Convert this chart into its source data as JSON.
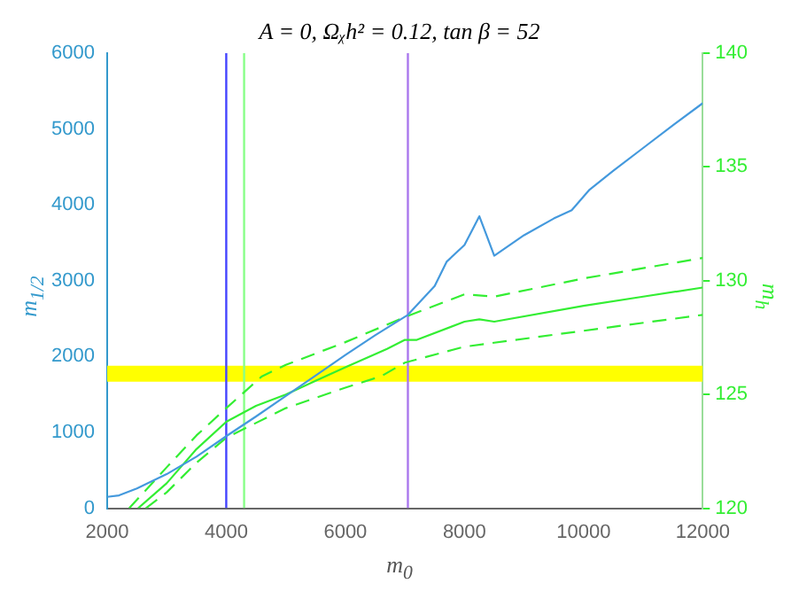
{
  "chart_data": {
    "type": "line",
    "title": "A = 0, Ωᵪh² = 0.12, tan β = 52",
    "xlabel": "m$_{0}$",
    "ylabel": "m$_{1/2}$",
    "y2label": "m$_{h}$",
    "xlim": [
      2000,
      12000
    ],
    "xticks": [
      2000,
      4000,
      6000,
      8000,
      10000,
      12000
    ],
    "ylim": [
      0,
      6000
    ],
    "yticks": [
      0,
      1000,
      2000,
      3000,
      4000,
      5000,
      6000
    ],
    "y2lim": [
      120,
      140
    ],
    "y2ticks": [
      120,
      125,
      130,
      135,
      140
    ],
    "grid": false,
    "legend": false,
    "marker": "none",
    "series": [
      {
        "color": "#4499dd",
        "axis": "y",
        "x": [
          2000,
          2200,
          2500,
          3000,
          3500,
          4000,
          4500,
          5000,
          5500,
          6000,
          6500,
          7050,
          7500,
          7700,
          8000,
          8250,
          8500,
          9000,
          9500,
          9800,
          10100,
          10500,
          11000,
          11500,
          12000
        ],
        "values": [
          150,
          170,
          260,
          450,
          680,
          950,
          1210,
          1480,
          1750,
          2020,
          2280,
          2550,
          2930,
          3250,
          3470,
          3850,
          3330,
          3600,
          3820,
          3930,
          4200,
          4450,
          4750,
          5050,
          5340
        ]
      },
      {
        "color": "#33ee33",
        "axis": "y2",
        "line_style": "solid",
        "x": [
          2520,
          3000,
          3500,
          4000,
          4500,
          5000,
          5500,
          6000,
          6700,
          7000,
          7200,
          8000,
          8250,
          8500,
          10000,
          11000,
          12000
        ],
        "values": [
          120,
          121.1,
          122.6,
          123.8,
          124.5,
          125.0,
          125.6,
          126.2,
          127.0,
          127.4,
          127.4,
          128.2,
          128.3,
          128.2,
          128.9,
          129.3,
          129.7
        ]
      },
      {
        "color": "#33ee33",
        "axis": "y2",
        "line_style": "dashed",
        "x": [
          2370,
          3000,
          3500,
          4000,
          4600,
          5000,
          6000,
          7000,
          8000,
          8500,
          10000,
          12000
        ],
        "values": [
          120,
          121.8,
          123.2,
          124.4,
          125.8,
          126.3,
          127.3,
          128.4,
          129.4,
          129.3,
          130.1,
          131.0
        ]
      },
      {
        "color": "#33ee33",
        "axis": "y2",
        "line_style": "dashed",
        "x": [
          2650,
          3000,
          3500,
          4000,
          5000,
          6000,
          6600,
          7000,
          8000,
          10000,
          12000
        ],
        "values": [
          120,
          120.7,
          122.0,
          123.1,
          124.4,
          125.3,
          125.8,
          126.4,
          127.1,
          127.8,
          128.5
        ]
      }
    ],
    "ref_lines": [
      {
        "axis": "x",
        "value": 4000,
        "color": "#4444ff"
      },
      {
        "axis": "x",
        "value": 4300,
        "color": "#88ff88"
      },
      {
        "axis": "x",
        "value": 7050,
        "color": "#aa77ee"
      }
    ],
    "bands": [
      {
        "axis": "y",
        "from": 1670,
        "to": 1880,
        "color": "#ffff00"
      }
    ]
  }
}
